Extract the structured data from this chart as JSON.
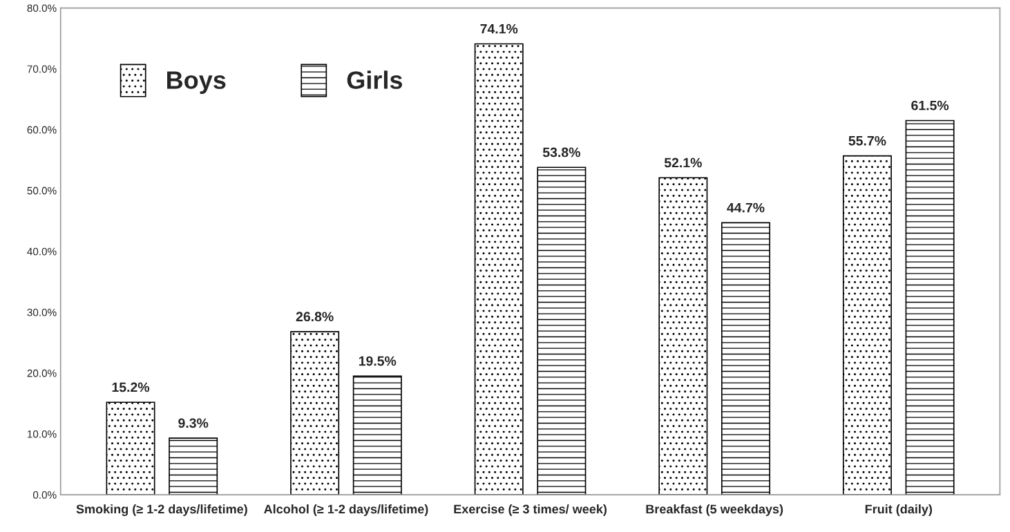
{
  "chart_data": {
    "type": "bar",
    "categories": [
      "Smoking (≥ 1-2 days/lifetime)",
      "Alcohol (≥ 1-2 days/lifetime)",
      "Exercise (≥ 3 times/ week)",
      "Breakfast (5 weekdays)",
      "Fruit (daily)"
    ],
    "series": [
      {
        "name": "Boys",
        "color": "#000000",
        "values": [
          15.2,
          26.8,
          74.1,
          52.1,
          55.7
        ],
        "value_labels": [
          "15.2%",
          "26.8%",
          "74.1%",
          "52.1%",
          "55.7%"
        ]
      },
      {
        "name": "Girls",
        "color": "#000000",
        "values": [
          9.3,
          19.5,
          53.8,
          44.7,
          61.5
        ],
        "value_labels": [
          "9.3%",
          "19.5%",
          "53.8%",
          "44.7%",
          "61.5%"
        ]
      }
    ],
    "ylim": [
      0,
      80
    ],
    "yticks": [
      {
        "value": 0,
        "label": "0.0%"
      },
      {
        "value": 10,
        "label": "10.0%"
      },
      {
        "value": 20,
        "label": "20.0%"
      },
      {
        "value": 30,
        "label": "30.0%"
      },
      {
        "value": 40,
        "label": "40.0%"
      },
      {
        "value": 50,
        "label": "50.0%"
      },
      {
        "value": 60,
        "label": "60.0%"
      },
      {
        "value": 70,
        "label": "70.0%"
      },
      {
        "value": 80,
        "label": "80.0%"
      }
    ],
    "legend": "top left"
  }
}
